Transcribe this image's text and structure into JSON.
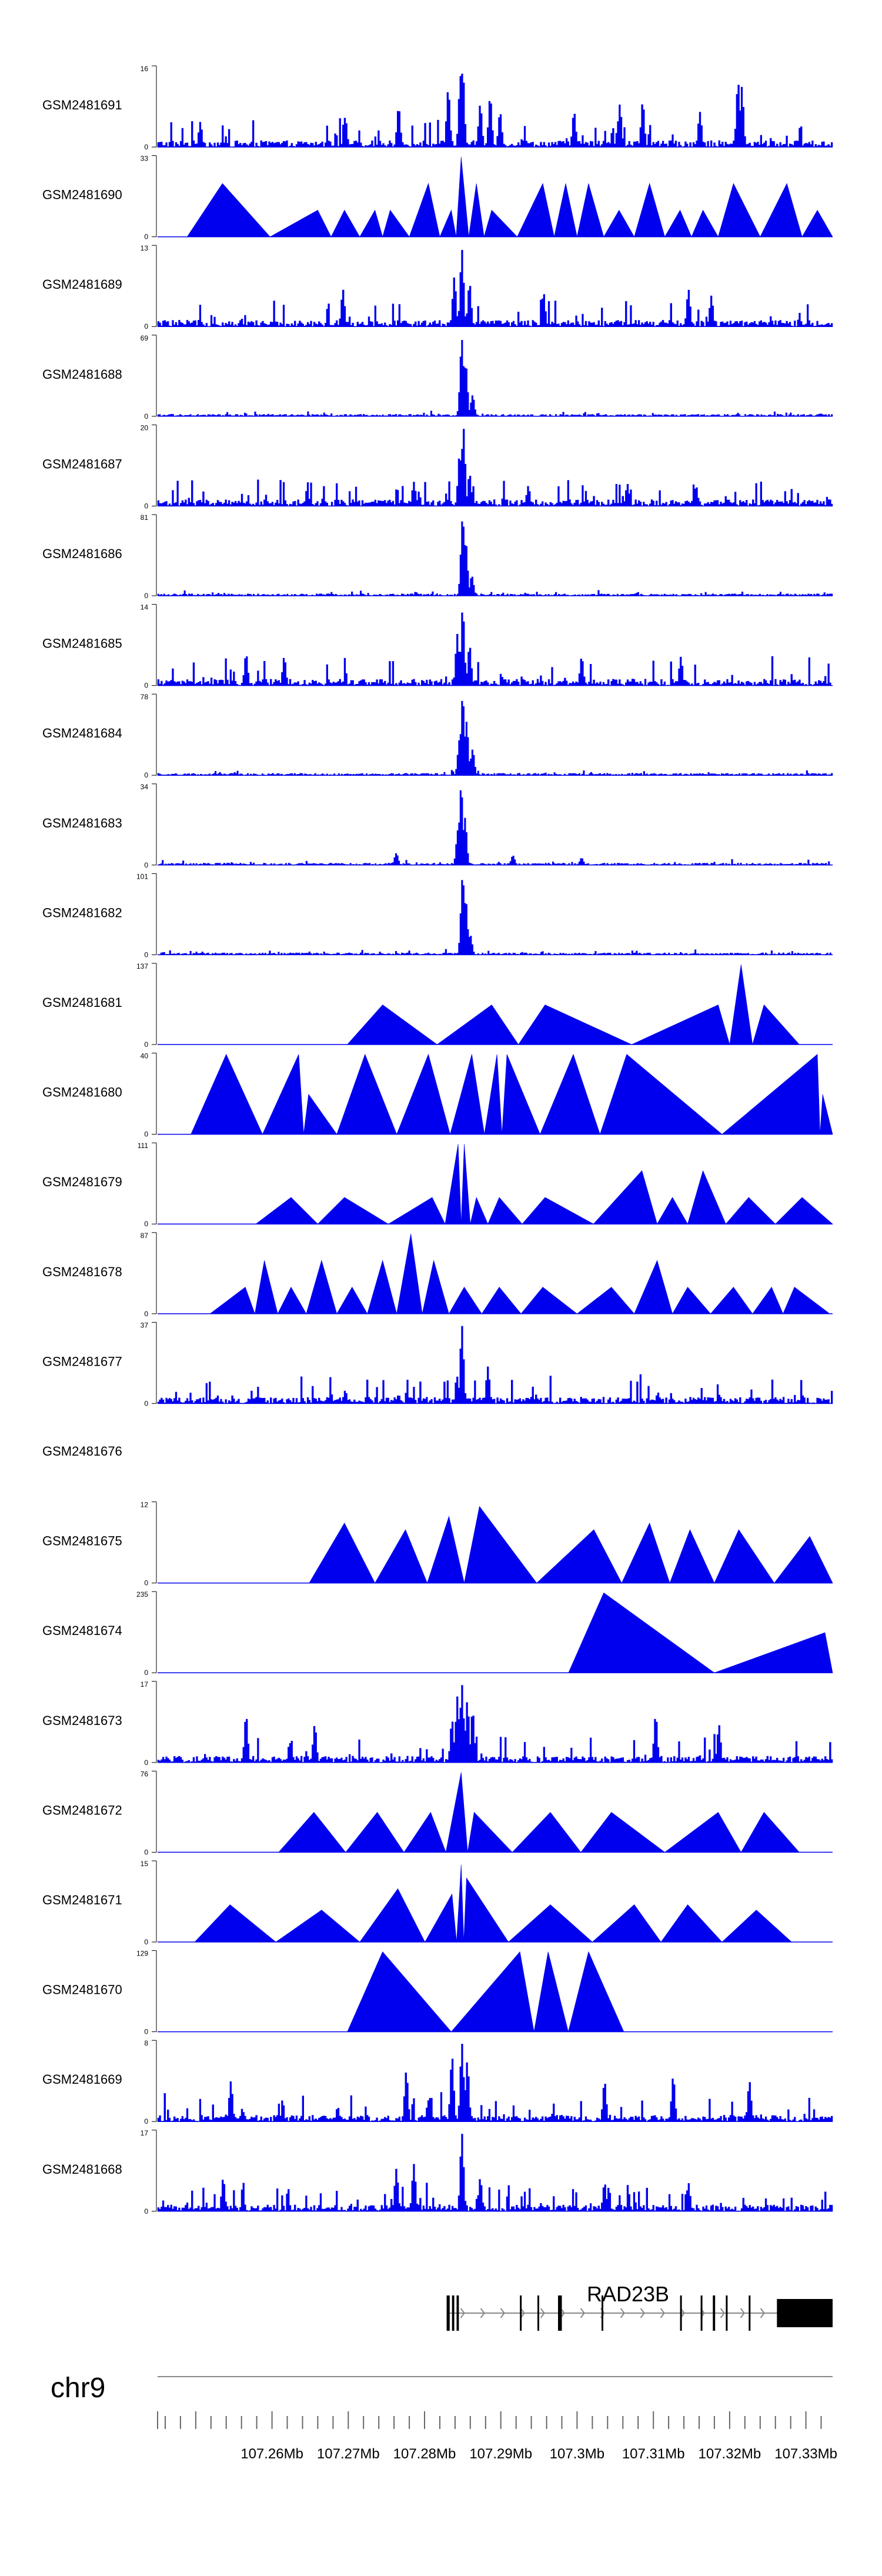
{
  "chart_data": {
    "type": "area",
    "title": "",
    "xlabel": "",
    "ylabel": "",
    "chromosome": "chr9",
    "x_range_mb": [
      107.245,
      107.3335
    ],
    "x_ticks": [
      107.26,
      107.27,
      107.28,
      107.29,
      107.3,
      107.31,
      107.32,
      107.33
    ],
    "x_tick_labels": [
      "107.26Mb",
      "107.27Mb",
      "107.28Mb",
      "107.29Mb",
      "107.3Mb",
      "107.31Mb",
      "107.32Mb",
      "107.33Mb"
    ],
    "series": [
      {
        "name": "GSM2481691",
        "ymax": 16,
        "ylim": [
          0,
          16
        ],
        "style": "noisy",
        "peaks": [
          [
            107.2849,
            15.5
          ],
          [
            107.2846,
            14.2
          ],
          [
            107.283,
            11.5
          ],
          [
            107.321,
            13
          ],
          [
            107.2885,
            10
          ],
          [
            107.3085,
            9
          ],
          [
            107.3215,
            12
          ],
          [
            107.2765,
            8
          ],
          [
            107.2872,
            8.5
          ],
          [
            107.2898,
            7
          ],
          [
            107.2995,
            7
          ],
          [
            107.3055,
            8.5
          ],
          [
            107.316,
            7
          ],
          [
            107.2505,
            5
          ],
          [
            107.2695,
            6
          ]
        ]
      },
      {
        "name": "GSM2481690",
        "ymax": 33,
        "ylim": [
          0,
          33
        ],
        "style": "triangles",
        "peaks": [
          [
            107.2535,
            22
          ],
          [
            107.266,
            11
          ],
          [
            107.2695,
            11
          ],
          [
            107.2735,
            11
          ],
          [
            107.2755,
            11
          ],
          [
            107.2805,
            22
          ],
          [
            107.2835,
            11
          ],
          [
            107.2848,
            33
          ],
          [
            107.2868,
            22
          ],
          [
            107.2888,
            11
          ],
          [
            107.2955,
            22
          ],
          [
            107.2985,
            22
          ],
          [
            107.3015,
            22
          ],
          [
            107.3055,
            11
          ],
          [
            107.3095,
            22
          ],
          [
            107.3135,
            11
          ],
          [
            107.3165,
            11
          ],
          [
            107.3205,
            22
          ],
          [
            107.3275,
            22
          ],
          [
            107.3315,
            11
          ]
        ]
      },
      {
        "name": "GSM2481689",
        "ymax": 13,
        "ylim": [
          0,
          13
        ],
        "style": "noisy",
        "peaks": [
          [
            107.2848,
            12.5
          ],
          [
            107.2838,
            8
          ],
          [
            107.2858,
            7
          ],
          [
            107.2692,
            6
          ],
          [
            107.2955,
            5.5
          ],
          [
            107.3145,
            6
          ],
          [
            107.3175,
            5
          ]
        ]
      },
      {
        "name": "GSM2481688",
        "ymax": 69,
        "ylim": [
          0,
          69
        ],
        "style": "peak",
        "peaks": [
          [
            107.2848,
            66
          ],
          [
            107.2853,
            45
          ],
          [
            107.2862,
            18
          ]
        ]
      },
      {
        "name": "GSM2481687",
        "ymax": 20,
        "ylim": [
          0,
          20
        ],
        "style": "noisy",
        "peaks": [
          [
            107.285,
            19.5
          ],
          [
            107.2845,
            13
          ],
          [
            107.2858,
            8
          ],
          [
            107.2785,
            6
          ],
          [
            107.2935,
            5
          ],
          [
            107.3065,
            5.5
          ],
          [
            107.3155,
            5
          ]
        ]
      },
      {
        "name": "GSM2481686",
        "ymax": 81,
        "ylim": [
          0,
          81
        ],
        "style": "peak",
        "peaks": [
          [
            107.2849,
            79
          ],
          [
            107.2853,
            55
          ],
          [
            107.2861,
            20
          ]
        ]
      },
      {
        "name": "GSM2481685",
        "ymax": 14,
        "ylim": [
          0,
          14
        ],
        "style": "noisy",
        "peaks": [
          [
            107.2849,
            13.5
          ],
          [
            107.2842,
            9
          ],
          [
            107.2858,
            7
          ],
          [
            107.2565,
            5.5
          ],
          [
            107.2615,
            5
          ],
          [
            107.3005,
            5
          ],
          [
            107.3135,
            5
          ]
        ]
      },
      {
        "name": "GSM2481684",
        "ymax": 78,
        "ylim": [
          0,
          78
        ],
        "style": "peak",
        "peaks": [
          [
            107.2849,
            76
          ],
          [
            107.2854,
            52
          ],
          [
            107.2845,
            35
          ],
          [
            107.2862,
            25
          ]
        ]
      },
      {
        "name": "GSM2481683",
        "ymax": 34,
        "ylim": [
          0,
          34
        ],
        "style": "peak",
        "peaks": [
          [
            107.2847,
            33
          ],
          [
            107.2852,
            20
          ],
          [
            107.2843,
            15
          ],
          [
            107.2762,
            5
          ],
          [
            107.2915,
            4
          ],
          [
            107.3005,
            3
          ]
        ]
      },
      {
        "name": "GSM2481682",
        "ymax": 101,
        "ylim": [
          0,
          101
        ],
        "style": "peak",
        "peaks": [
          [
            107.2849,
            99
          ],
          [
            107.2853,
            70
          ],
          [
            107.2859,
            25
          ]
        ]
      },
      {
        "name": "GSM2481681",
        "ymax": 137,
        "ylim": [
          0,
          137
        ],
        "style": "triangles",
        "peaks": [
          [
            107.2745,
            68
          ],
          [
            107.2888,
            68
          ],
          [
            107.2958,
            68
          ],
          [
            107.3185,
            68
          ],
          [
            107.3215,
            137
          ],
          [
            107.3245,
            68
          ]
        ]
      },
      {
        "name": "GSM2481680",
        "ymax": 40,
        "ylim": [
          0,
          40
        ],
        "style": "triangles",
        "peaks": [
          [
            107.254,
            40
          ],
          [
            107.2635,
            40
          ],
          [
            107.2648,
            20
          ],
          [
            107.2722,
            40
          ],
          [
            107.2805,
            40
          ],
          [
            107.2862,
            40
          ],
          [
            107.2895,
            40
          ],
          [
            107.2908,
            40
          ],
          [
            107.2995,
            40
          ],
          [
            107.3065,
            40
          ],
          [
            107.3315,
            40
          ],
          [
            107.3322,
            20
          ]
        ]
      },
      {
        "name": "GSM2481679",
        "ymax": 111,
        "ylim": [
          0,
          111
        ],
        "style": "triangles",
        "peaks": [
          [
            107.2625,
            37
          ],
          [
            107.2695,
            37
          ],
          [
            107.281,
            37
          ],
          [
            107.2844,
            111
          ],
          [
            107.2852,
            111
          ],
          [
            107.2868,
            37
          ],
          [
            107.2898,
            37
          ],
          [
            107.2958,
            37
          ],
          [
            107.3085,
            74
          ],
          [
            107.3125,
            37
          ],
          [
            107.3165,
            74
          ],
          [
            107.3225,
            37
          ],
          [
            107.3295,
            37
          ]
        ]
      },
      {
        "name": "GSM2481678",
        "ymax": 87,
        "ylim": [
          0,
          87
        ],
        "style": "triangles",
        "peaks": [
          [
            107.2565,
            29
          ],
          [
            107.259,
            58
          ],
          [
            107.2625,
            29
          ],
          [
            107.2665,
            58
          ],
          [
            107.2705,
            29
          ],
          [
            107.2745,
            58
          ],
          [
            107.2782,
            87
          ],
          [
            107.2812,
            58
          ],
          [
            107.2852,
            29
          ],
          [
            107.2898,
            29
          ],
          [
            107.2955,
            29
          ],
          [
            107.3045,
            29
          ],
          [
            107.3105,
            58
          ],
          [
            107.3145,
            29
          ],
          [
            107.3205,
            29
          ],
          [
            107.3255,
            29
          ],
          [
            107.3285,
            29
          ]
        ]
      },
      {
        "name": "GSM2481677",
        "ymax": 37,
        "ylim": [
          0,
          37
        ],
        "style": "noisy",
        "peaks": [
          [
            107.2848,
            36
          ],
          [
            107.2882,
            17
          ],
          [
            107.2695,
            6
          ],
          [
            107.2765,
            4
          ],
          [
            107.3105,
            5
          ],
          [
            107.3185,
            4
          ]
        ]
      },
      {
        "name": "GSM2481676",
        "ymax": null,
        "ylim": null,
        "style": "empty",
        "peaks": []
      },
      {
        "name": "GSM2481675",
        "ymax": 12,
        "ylim": [
          0,
          12
        ],
        "style": "triangles",
        "peaks": [
          [
            107.2695,
            9
          ],
          [
            107.2775,
            8
          ],
          [
            107.2832,
            10
          ],
          [
            107.2872,
            11.5
          ],
          [
            107.3022,
            8
          ],
          [
            107.3095,
            9
          ],
          [
            107.3148,
            8
          ],
          [
            107.3212,
            8
          ],
          [
            107.3305,
            7
          ]
        ]
      },
      {
        "name": "GSM2481674",
        "ymax": 235,
        "ylim": [
          0,
          235
        ],
        "style": "triangles",
        "peaks": [
          [
            107.3035,
            235
          ],
          [
            107.3325,
            118
          ]
        ]
      },
      {
        "name": "GSM2481673",
        "ymax": 17,
        "ylim": [
          0,
          17
        ],
        "style": "noisy",
        "peaks": [
          [
            107.2848,
            16.5
          ],
          [
            107.2842,
            14
          ],
          [
            107.2855,
            13
          ],
          [
            107.2862,
            11
          ],
          [
            107.2835,
            9
          ],
          [
            107.2565,
            10
          ],
          [
            107.2655,
            8
          ],
          [
            107.3102,
            10
          ],
          [
            107.3185,
            8
          ]
        ]
      },
      {
        "name": "GSM2481672",
        "ymax": 76,
        "ylim": [
          0,
          76
        ],
        "style": "triangles",
        "peaks": [
          [
            107.2655,
            38
          ],
          [
            107.2738,
            38
          ],
          [
            107.2808,
            38
          ],
          [
            107.2848,
            76
          ],
          [
            107.2865,
            38
          ],
          [
            107.2965,
            38
          ],
          [
            107.3045,
            38
          ],
          [
            107.3185,
            38
          ],
          [
            107.3245,
            38
          ]
        ]
      },
      {
        "name": "GSM2481671",
        "ymax": 15,
        "ylim": [
          0,
          15
        ],
        "style": "triangles",
        "peaks": [
          [
            107.2848,
            14.5
          ],
          [
            107.2855,
            12
          ],
          [
            107.2836,
            9
          ],
          [
            107.2765,
            10
          ],
          [
            107.2545,
            7
          ],
          [
            107.2665,
            6
          ],
          [
            107.2965,
            7
          ],
          [
            107.3075,
            7
          ],
          [
            107.3145,
            7
          ],
          [
            107.3235,
            6
          ]
        ]
      },
      {
        "name": "GSM2481670",
        "ymax": 129,
        "ylim": [
          0,
          129
        ],
        "style": "triangles",
        "peaks": [
          [
            107.2745,
            129
          ],
          [
            107.2925,
            129
          ],
          [
            107.2962,
            129
          ],
          [
            107.3015,
            129
          ]
        ]
      },
      {
        "name": "GSM2481669",
        "ymax": 8,
        "ylim": [
          0,
          8
        ],
        "style": "noisy",
        "peaks": [
          [
            107.2848,
            7.8
          ],
          [
            107.2835,
            6.5
          ],
          [
            107.2855,
            6
          ],
          [
            107.2775,
            5
          ],
          [
            107.2545,
            4
          ],
          [
            107.3035,
            4
          ],
          [
            107.3125,
            4.5
          ],
          [
            107.3225,
            4
          ]
        ]
      },
      {
        "name": "GSM2481668",
        "ymax": 17,
        "ylim": [
          0,
          17
        ],
        "style": "noisy",
        "peaks": [
          [
            107.2848,
            16.5
          ],
          [
            107.2535,
            7
          ],
          [
            107.2785,
            10
          ],
          [
            107.2762,
            9
          ],
          [
            107.2872,
            7
          ],
          [
            107.3035,
            6
          ],
          [
            107.3145,
            6
          ]
        ]
      }
    ],
    "gene_annotation": {
      "name": "RAD23B",
      "strand": "+",
      "span_mb": [
        107.2829,
        107.3335
      ],
      "exons_mb": [
        [
          107.2829,
          107.2833
        ],
        [
          107.2836,
          107.2839
        ],
        [
          107.2842,
          107.2845
        ],
        [
          107.2925,
          107.2927
        ],
        [
          107.2948,
          107.295
        ],
        [
          107.2975,
          107.298
        ],
        [
          107.3032,
          107.3034
        ],
        [
          107.3135,
          107.3137
        ],
        [
          107.3162,
          107.3164
        ],
        [
          107.3178,
          107.3181
        ],
        [
          107.3195,
          107.3197
        ],
        [
          107.3225,
          107.3227
        ],
        [
          107.3262,
          107.3335
        ]
      ]
    }
  }
}
